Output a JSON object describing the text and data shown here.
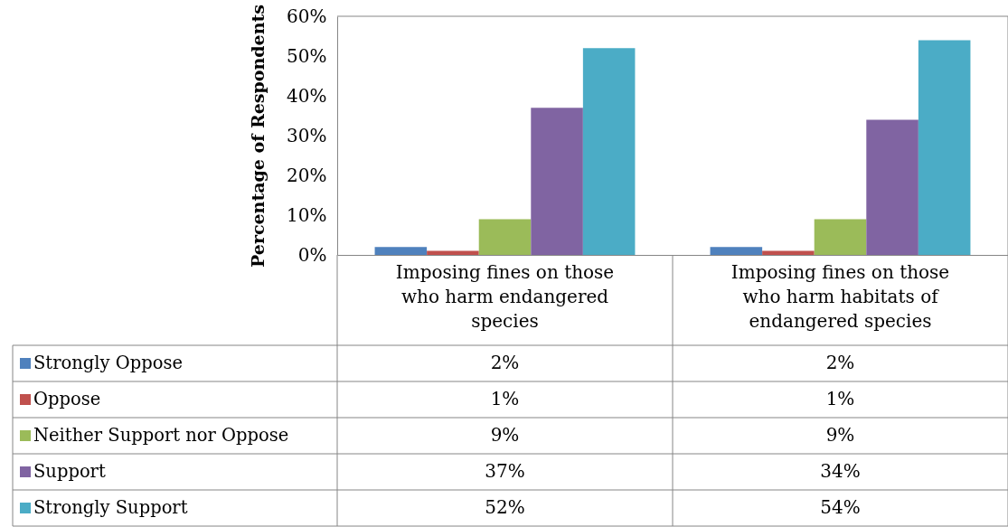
{
  "chart_data": {
    "type": "bar",
    "ylabel": "Percentage of Respondents",
    "categories": [
      "Imposing fines on those who harm endangered species",
      "Imposing fines on those who harm habitats of endangered species"
    ],
    "series": [
      {
        "name": "Strongly Oppose",
        "color": "#4f81bd",
        "values": [
          2,
          2
        ],
        "value_labels": [
          "2%",
          "2%"
        ]
      },
      {
        "name": "Oppose",
        "color": "#c0504d",
        "values": [
          1,
          1
        ],
        "value_labels": [
          "1%",
          "1%"
        ]
      },
      {
        "name": "Neither Support nor Oppose",
        "color": "#9bbb59",
        "values": [
          9,
          9
        ],
        "value_labels": [
          "9%",
          "9%"
        ]
      },
      {
        "name": "Support",
        "color": "#8064a2",
        "values": [
          37,
          34
        ],
        "value_labels": [
          "37%",
          "34%"
        ]
      },
      {
        "name": "Strongly Support",
        "color": "#4bacc6",
        "values": [
          52,
          54
        ],
        "value_labels": [
          "52%",
          "54%"
        ]
      }
    ],
    "ylim": [
      0,
      60
    ],
    "yticks": [
      {
        "value": 0,
        "label": "0%"
      },
      {
        "value": 10,
        "label": "10%"
      },
      {
        "value": 20,
        "label": "20%"
      },
      {
        "value": 30,
        "label": "30%"
      },
      {
        "value": 40,
        "label": "40%"
      },
      {
        "value": 50,
        "label": "50%"
      },
      {
        "value": 60,
        "label": "60%"
      }
    ],
    "legend": "bottom left"
  }
}
